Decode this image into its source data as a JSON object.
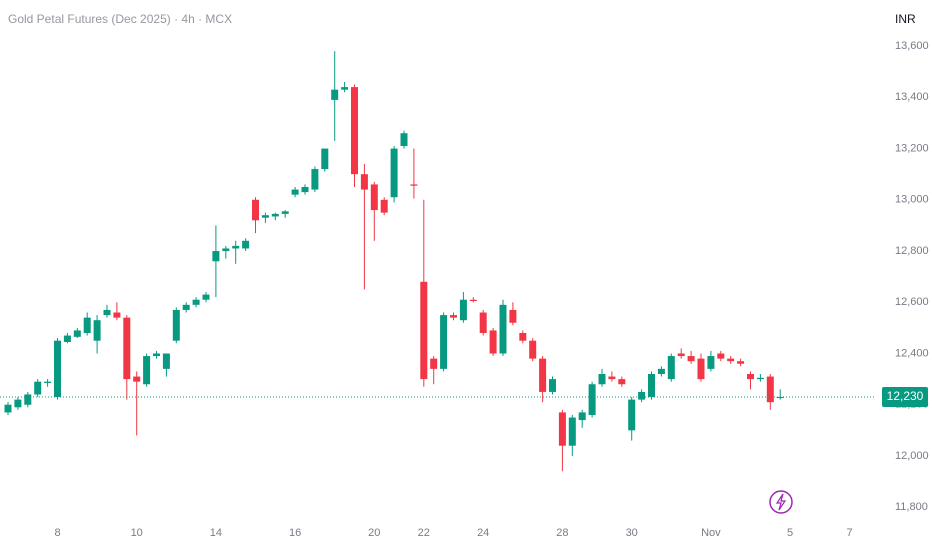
{
  "chart_data": {
    "type": "candlestick",
    "title": "Gold Petal Futures (Dec 2025) · 4h · MCX",
    "currency": "INR",
    "up_color": "#089981",
    "down_color": "#f23645",
    "grid": false,
    "categories": [
      null,
      null,
      null,
      null,
      null,
      "8",
      null,
      null,
      null,
      null,
      null,
      null,
      null,
      "10",
      null,
      null,
      null,
      null,
      null,
      null,
      null,
      "14",
      null,
      null,
      null,
      null,
      null,
      null,
      null,
      "16",
      null,
      null,
      null,
      null,
      null,
      null,
      null,
      "20",
      null,
      null,
      null,
      null,
      "22",
      null,
      null,
      null,
      null,
      null,
      "24",
      null,
      null,
      null,
      null,
      null,
      null,
      null,
      "28",
      null,
      null,
      null,
      null,
      null,
      null,
      "30",
      null,
      null,
      null,
      null,
      null,
      null,
      null,
      "Nov",
      null,
      null,
      null,
      null,
      null,
      null,
      null,
      "5",
      null,
      null,
      null,
      null,
      null,
      "7"
    ],
    "open": [
      12170,
      12190,
      12200,
      12240,
      12285,
      12230,
      12445,
      12465,
      12480,
      12450,
      12550,
      12560,
      12540,
      12310,
      12280,
      12390,
      12340,
      12450,
      12570,
      12590,
      12610,
      12760,
      12800,
      12810,
      12810,
      13000,
      12930,
      12935,
      12945,
      13020,
      13030,
      13040,
      13120,
      13390,
      13430,
      13440,
      13100,
      13060,
      13000,
      13010,
      13210,
      13060,
      12680,
      12380,
      12340,
      12550,
      12530,
      12610,
      12560,
      12490,
      12400,
      12570,
      12480,
      12450,
      12380,
      12250,
      12170,
      12040,
      12140,
      12160,
      12280,
      12310,
      12300,
      12100,
      12220,
      12230,
      12320,
      12300,
      12400,
      12390,
      12380,
      12340,
      12400,
      12380,
      12370,
      12320,
      12300,
      12310,
      12230,
      null,
      null,
      null,
      null,
      null,
      null,
      null
    ],
    "high": [
      12210,
      12230,
      12250,
      12300,
      12300,
      12460,
      12480,
      12500,
      12560,
      12550,
      12590,
      12600,
      12550,
      12330,
      12400,
      12410,
      12400,
      12580,
      12600,
      12620,
      12640,
      12900,
      12820,
      12840,
      12850,
      13010,
      12950,
      12950,
      12960,
      13050,
      13060,
      13130,
      13200,
      13580,
      13460,
      13450,
      13140,
      13070,
      13010,
      13210,
      13270,
      13200,
      13000,
      12390,
      12560,
      12560,
      12640,
      12620,
      12570,
      12500,
      12610,
      12600,
      12490,
      12460,
      12390,
      12310,
      12180,
      12160,
      12180,
      12290,
      12340,
      12330,
      12310,
      12230,
      12260,
      12330,
      12350,
      12400,
      12420,
      12410,
      12400,
      12410,
      12410,
      12390,
      12380,
      12330,
      12320,
      12320,
      12260,
      null,
      null,
      null,
      null,
      null,
      null,
      null
    ],
    "low": [
      12160,
      12180,
      12190,
      12230,
      12270,
      12220,
      12440,
      12460,
      12470,
      12400,
      12540,
      12530,
      12220,
      12080,
      12270,
      12380,
      12310,
      12440,
      12560,
      12580,
      12600,
      12620,
      12770,
      12750,
      12800,
      12870,
      12910,
      12920,
      12930,
      13010,
      13020,
      13030,
      13110,
      13230,
      13420,
      13050,
      12650,
      12840,
      12940,
      12990,
      13200,
      13005,
      12270,
      12280,
      12330,
      12530,
      12520,
      12600,
      12470,
      12390,
      12390,
      12510,
      12440,
      12370,
      12210,
      12240,
      11940,
      12000,
      12110,
      12150,
      12270,
      12290,
      12270,
      12060,
      12210,
      12220,
      12310,
      12290,
      12380,
      12360,
      12290,
      12330,
      12370,
      12360,
      12350,
      12260,
      12290,
      12180,
      12220,
      null,
      null,
      null,
      null,
      null,
      null,
      null
    ],
    "close": [
      12200,
      12220,
      12240,
      12290,
      12290,
      12450,
      12470,
      12490,
      12540,
      12530,
      12570,
      12540,
      12300,
      12290,
      12390,
      12400,
      12400,
      12570,
      12590,
      12610,
      12630,
      12800,
      12810,
      12820,
      12840,
      12920,
      12940,
      12945,
      12955,
      13040,
      13050,
      13120,
      13200,
      13430,
      13440,
      13100,
      13040,
      12960,
      12950,
      13200,
      13260,
      13055,
      12300,
      12340,
      12550,
      12540,
      12610,
      12605,
      12480,
      12400,
      12590,
      12520,
      12450,
      12380,
      12250,
      12300,
      12040,
      12150,
      12170,
      12280,
      12320,
      12300,
      12280,
      12220,
      12250,
      12320,
      12340,
      12390,
      12390,
      12370,
      12300,
      12390,
      12380,
      12370,
      12360,
      12300,
      12305,
      12210,
      12230,
      null,
      null,
      null,
      null,
      null,
      null,
      null
    ],
    "ylim": [
      11750,
      13780
    ],
    "yticks": [
      {
        "value": 11800,
        "label": "11,800"
      },
      {
        "value": 12000,
        "label": "12,000"
      },
      {
        "value": 12200,
        "label": "12,200"
      },
      {
        "value": 12400,
        "label": "12,400"
      },
      {
        "value": 12600,
        "label": "12,600"
      },
      {
        "value": 12800,
        "label": "12,800"
      },
      {
        "value": 13000,
        "label": "13,000"
      },
      {
        "value": 13200,
        "label": "13,200"
      },
      {
        "value": 13400,
        "label": "13,400"
      },
      {
        "value": 13600,
        "label": "13,600"
      }
    ],
    "price_line": {
      "value": 12230,
      "label": "12,230"
    }
  }
}
